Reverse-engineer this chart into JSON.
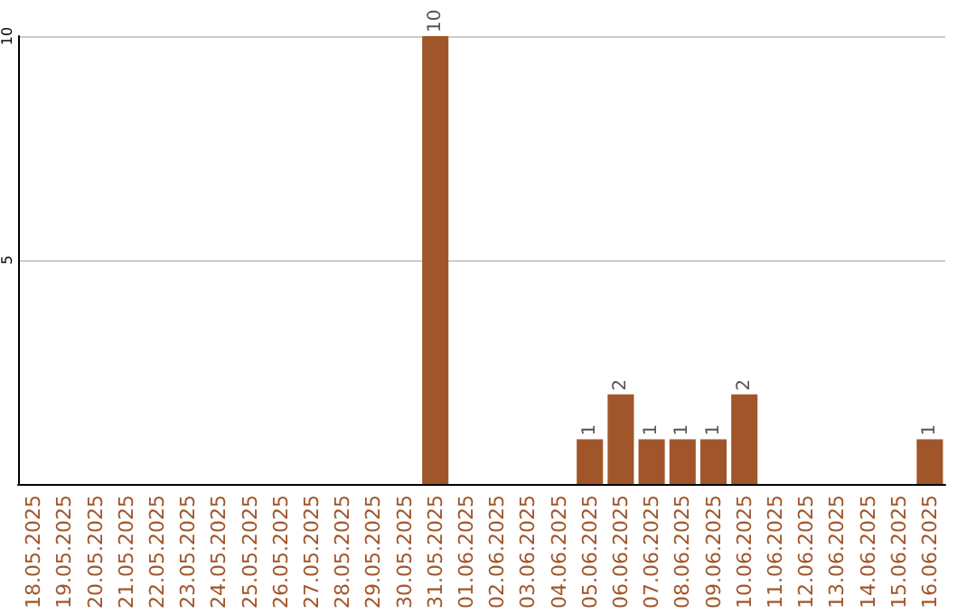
{
  "chart_data": {
    "type": "bar",
    "categories": [
      "18.05.2025",
      "19.05.2025",
      "20.05.2025",
      "21.05.2025",
      "22.05.2025",
      "23.05.2025",
      "24.05.2025",
      "25.05.2025",
      "26.05.2025",
      "27.05.2025",
      "28.05.2025",
      "29.05.2025",
      "30.05.2025",
      "31.05.2025",
      "01.06.2025",
      "02.06.2025",
      "03.06.2025",
      "04.06.2025",
      "05.06.2025",
      "06.06.2025",
      "07.06.2025",
      "08.06.2025",
      "09.06.2025",
      "10.06.2025",
      "11.06.2025",
      "12.06.2025",
      "13.06.2025",
      "14.06.2025",
      "15.06.2025",
      "16.06.2025"
    ],
    "values": [
      0,
      0,
      0,
      0,
      0,
      0,
      0,
      0,
      0,
      0,
      0,
      0,
      0,
      10,
      0,
      0,
      0,
      0,
      1,
      2,
      1,
      1,
      1,
      2,
      0,
      0,
      0,
      0,
      0,
      1
    ],
    "value_labels": [
      null,
      null,
      null,
      null,
      null,
      null,
      null,
      null,
      null,
      null,
      null,
      null,
      null,
      "10",
      null,
      null,
      null,
      null,
      "1",
      "2",
      "1",
      "1",
      "1",
      "2",
      null,
      null,
      null,
      null,
      null,
      "1"
    ],
    "color": "#a0562a",
    "ylim": [
      0,
      10
    ],
    "yticks": [
      {
        "value": 0,
        "label": null
      },
      5,
      10
    ],
    "grid": "y"
  }
}
